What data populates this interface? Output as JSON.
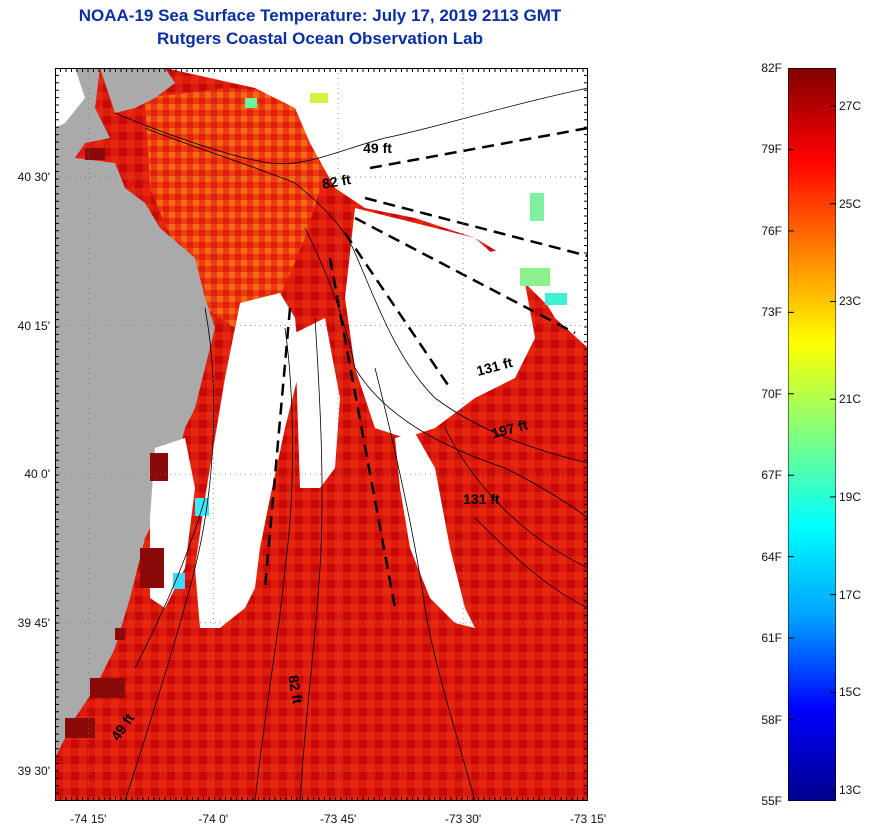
{
  "header": {
    "title": "NOAA-19 Sea Surface Temperature:  July 17, 2019 2113 GMT",
    "subtitle": "Rutgers Coastal Ocean Observation Lab"
  },
  "map": {
    "lat_range": [
      39.45,
      40.6833
    ],
    "lon_range": [
      -74.3167,
      -73.25
    ],
    "lat_ticks": [
      {
        "value": 40.5,
        "label": "40 30'"
      },
      {
        "value": 40.25,
        "label": "40 15'"
      },
      {
        "value": 40.0,
        "label": "40 0'"
      },
      {
        "value": 39.75,
        "label": "39 45'"
      },
      {
        "value": 39.5,
        "label": "39 30'"
      }
    ],
    "lon_ticks": [
      {
        "value": -74.25,
        "label": "-74 15'"
      },
      {
        "value": -74.0,
        "label": "-74 0'"
      },
      {
        "value": -73.75,
        "label": "-73 45'"
      },
      {
        "value": -73.5,
        "label": "-73 30'"
      },
      {
        "value": -73.25,
        "label": "-73 15'"
      }
    ],
    "depth_labels": [
      {
        "text": "49 ft",
        "lon": -73.7,
        "lat": 40.54
      },
      {
        "text": "82 ft",
        "lon": -73.78,
        "lat": 40.48
      },
      {
        "text": "131 ft",
        "lon": -73.47,
        "lat": 40.165
      },
      {
        "text": "197 ft",
        "lon": -73.44,
        "lat": 40.06
      },
      {
        "text": "131 ft",
        "lon": -73.5,
        "lat": 39.95
      },
      {
        "text": "82 ft",
        "lon": -73.85,
        "lat": 39.66
      },
      {
        "text": "49 ft",
        "lon": -74.19,
        "lat": 39.55
      }
    ],
    "colors": {
      "land": "#aaaaaa",
      "cloud": "#ffffff",
      "sea_warm": "#e01010",
      "sea_hot": "#c40000"
    }
  },
  "colorbar": {
    "min_f": 55,
    "max_f": 82,
    "f_labels": [
      "82F",
      "79F",
      "76F",
      "73F",
      "70F",
      "67F",
      "64F",
      "61F",
      "58F",
      "55F"
    ],
    "c_labels": [
      "27C",
      "25C",
      "23C",
      "21C",
      "19C",
      "17C",
      "15C",
      "13C"
    ],
    "stops": [
      "#00008c",
      "#0000ff",
      "#00a0ff",
      "#00ffff",
      "#80ff80",
      "#ffff00",
      "#ff8000",
      "#ff0000",
      "#800000"
    ]
  }
}
